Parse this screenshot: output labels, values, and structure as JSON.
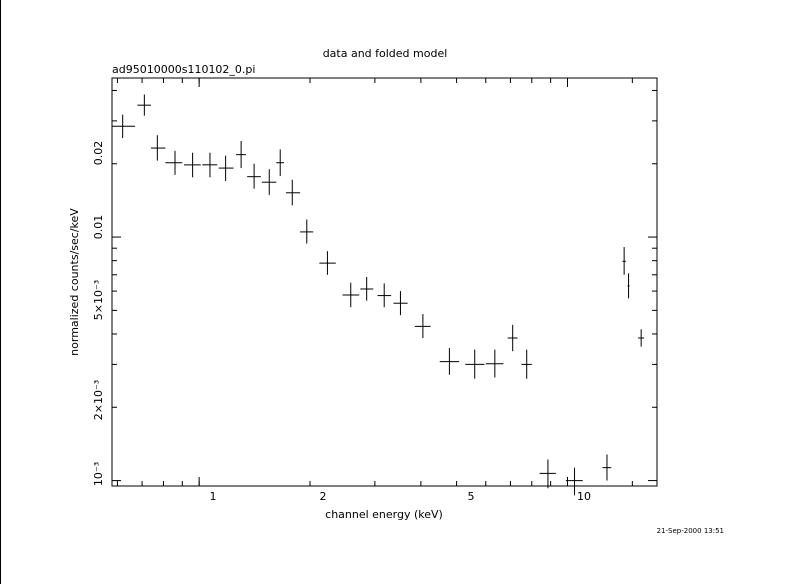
{
  "chart_data": {
    "type": "scatter",
    "title": "data and folded model",
    "subtitle": "ad95010000s110102_0.pi",
    "xlabel": "channel energy (keV)",
    "ylabel": "normalized counts/sec/keV",
    "xscale": "log",
    "yscale": "log",
    "xlim": [
      0.58,
      17.5
    ],
    "ylim": [
      0.00095,
      0.045
    ],
    "x_tick_labels": [
      "1",
      "2",
      "5",
      "10"
    ],
    "y_tick_labels": [
      "10⁻³",
      "2×10⁻³",
      "5×10⁻³",
      "0.01",
      "0.02"
    ],
    "timestamp": "21-Sep-2000 13:51",
    "series": [
      {
        "points": [
          {
            "x": 0.62,
            "xerr": [
              0.58,
              0.67
            ],
            "y": 0.0285,
            "yerr": [
              0.0255,
              0.0318
            ]
          },
          {
            "x": 0.71,
            "xerr": [
              0.68,
              0.74
            ],
            "y": 0.0348,
            "yerr": [
              0.0315,
              0.0385
            ]
          },
          {
            "x": 0.77,
            "xerr": [
              0.74,
              0.81
            ],
            "y": 0.0232,
            "yerr": [
              0.0206,
              0.0262
            ]
          },
          {
            "x": 0.86,
            "xerr": [
              0.81,
              0.9
            ],
            "y": 0.0202,
            "yerr": [
              0.018,
              0.0226
            ]
          },
          {
            "x": 0.96,
            "xerr": [
              0.91,
              1.01
            ],
            "y": 0.0198,
            "yerr": [
              0.0176,
              0.0222
            ]
          },
          {
            "x": 1.07,
            "xerr": [
              1.02,
              1.12
            ],
            "y": 0.0198,
            "yerr": [
              0.0176,
              0.0222
            ]
          },
          {
            "x": 1.18,
            "xerr": [
              1.13,
              1.24
            ],
            "y": 0.0192,
            "yerr": [
              0.017,
              0.0216
            ]
          },
          {
            "x": 1.3,
            "xerr": [
              1.26,
              1.34
            ],
            "y": 0.0218,
            "yerr": [
              0.0192,
              0.0248
            ]
          },
          {
            "x": 1.41,
            "xerr": [
              1.35,
              1.47
            ],
            "y": 0.0177,
            "yerr": [
              0.0158,
              0.02
            ]
          },
          {
            "x": 1.55,
            "xerr": [
              1.48,
              1.62
            ],
            "y": 0.0168,
            "yerr": [
              0.0149,
              0.019
            ]
          },
          {
            "x": 1.66,
            "xerr": [
              1.62,
              1.7
            ],
            "y": 0.0202,
            "yerr": [
              0.0178,
              0.0229
            ]
          },
          {
            "x": 1.79,
            "xerr": [
              1.72,
              1.88
            ],
            "y": 0.0152,
            "yerr": [
              0.0135,
              0.0172
            ]
          },
          {
            "x": 1.96,
            "xerr": [
              1.88,
              2.04
            ],
            "y": 0.0105,
            "yerr": [
              0.0094,
              0.0118
            ]
          },
          {
            "x": 2.23,
            "xerr": [
              2.12,
              2.35
            ],
            "y": 0.00782,
            "yerr": [
              0.007,
              0.00875
            ]
          },
          {
            "x": 2.58,
            "xerr": [
              2.45,
              2.72
            ],
            "y": 0.00578,
            "yerr": [
              0.00515,
              0.0065
            ]
          },
          {
            "x": 2.85,
            "xerr": [
              2.74,
              2.97
            ],
            "y": 0.00612,
            "yerr": [
              0.00548,
              0.00686
            ]
          },
          {
            "x": 3.18,
            "xerr": [
              3.05,
              3.32
            ],
            "y": 0.00575,
            "yerr": [
              0.00515,
              0.00645
            ]
          },
          {
            "x": 3.52,
            "xerr": [
              3.37,
              3.68
            ],
            "y": 0.00535,
            "yerr": [
              0.00478,
              0.006
            ]
          },
          {
            "x": 4.05,
            "xerr": [
              3.85,
              4.25
            ],
            "y": 0.0043,
            "yerr": [
              0.00385,
              0.00483
            ]
          },
          {
            "x": 4.78,
            "xerr": [
              4.5,
              5.08
            ],
            "y": 0.00308,
            "yerr": [
              0.00272,
              0.0035
            ]
          },
          {
            "x": 5.6,
            "xerr": [
              5.28,
              5.95
            ],
            "y": 0.003,
            "yerr": [
              0.00262,
              0.00345
            ]
          },
          {
            "x": 6.35,
            "xerr": [
              6.0,
              6.7
            ],
            "y": 0.00302,
            "yerr": [
              0.00265,
              0.00345
            ]
          },
          {
            "x": 7.1,
            "xerr": [
              6.88,
              7.32
            ],
            "y": 0.00385,
            "yerr": [
              0.0034,
              0.00436
            ]
          },
          {
            "x": 7.75,
            "xerr": [
              7.5,
              8.0
            ],
            "y": 0.003,
            "yerr": [
              0.00262,
              0.00345
            ]
          },
          {
            "x": 8.85,
            "xerr": [
              8.4,
              9.3
            ],
            "y": 0.00107,
            "yerr": [
              0.00093,
              0.00122
            ]
          },
          {
            "x": 10.45,
            "xerr": [
              9.9,
              11.0
            ],
            "y": 0.001,
            "yerr": [
              0.00087,
              0.00113
            ]
          },
          {
            "x": 12.8,
            "xerr": [
              12.45,
              13.15
            ],
            "y": 0.00113,
            "yerr": [
              0.001,
              0.00128
            ]
          },
          {
            "x": 14.25,
            "xerr": [
              14.1,
              14.4
            ],
            "y": 0.00795,
            "yerr": [
              0.007,
              0.0091
            ]
          },
          {
            "x": 14.65,
            "xerr": [
              14.55,
              14.75
            ],
            "y": 0.0063,
            "yerr": [
              0.0056,
              0.0071
            ]
          },
          {
            "x": 15.85,
            "xerr": [
              15.55,
              16.15
            ],
            "y": 0.00385,
            "yerr": [
              0.00355,
              0.00418
            ]
          }
        ]
      }
    ]
  }
}
